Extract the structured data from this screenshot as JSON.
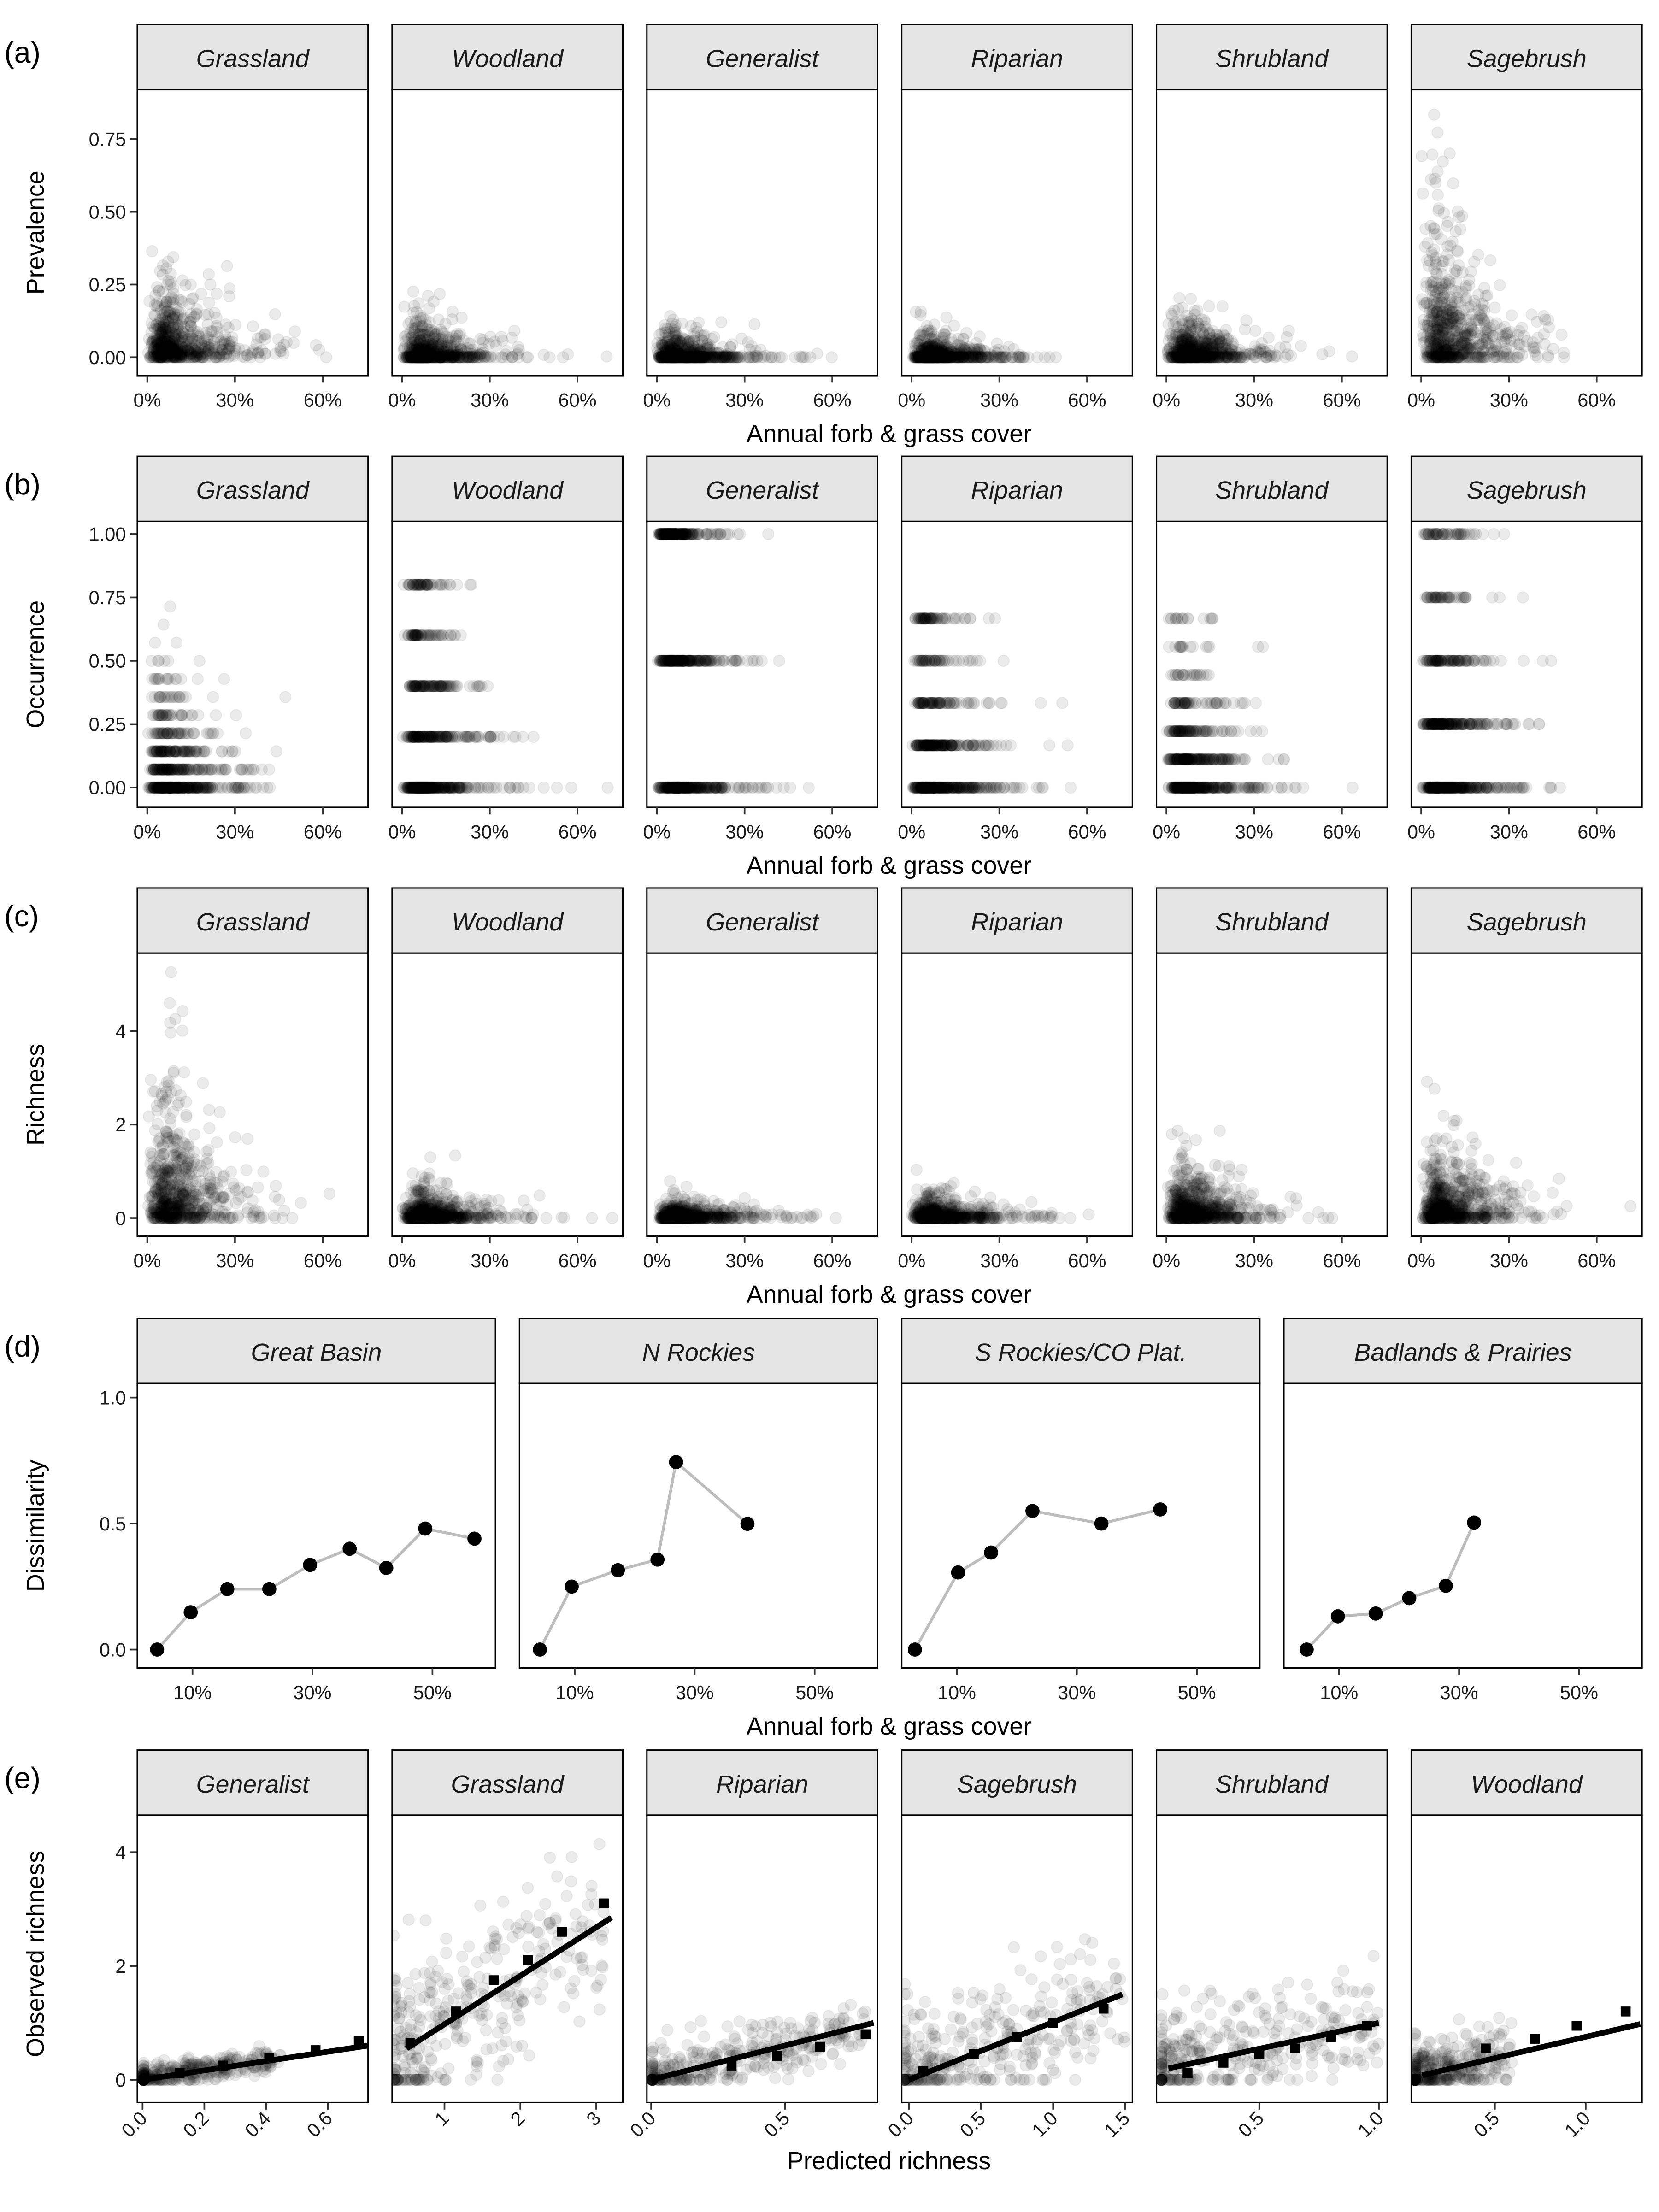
{
  "figure": {
    "panel_tags": [
      "(a)",
      "(b)",
      "(c)",
      "(d)",
      "(e)"
    ],
    "colors": {
      "points": "#000000",
      "strip_fill": "#e5e5e5",
      "connector_line": "#bdbdbd",
      "fit_line": "#000000"
    }
  },
  "chart_data": [
    {
      "tag": "(a)",
      "type": "scatter",
      "ylabel": "Prevalence",
      "xlabel": "Annual forb & grass cover",
      "facets": [
        "Grassland",
        "Woodland",
        "Generalist",
        "Riparian",
        "Shrubland",
        "Sagebrush"
      ],
      "x_ticks": [
        {
          "v": 0,
          "label": "0%"
        },
        {
          "v": 30,
          "label": "30%"
        },
        {
          "v": 60,
          "label": "60%"
        }
      ],
      "y_ticks": [
        {
          "v": 0,
          "label": "0.00"
        },
        {
          "v": 0.25,
          "label": "0.25"
        },
        {
          "v": 0.5,
          "label": "0.50"
        },
        {
          "v": 0.75,
          "label": "0.75"
        }
      ],
      "xlim": [
        -3.4,
        75.5
      ],
      "ylim": [
        -0.063,
        0.92
      ],
      "point_alpha": 0.08,
      "approx_distribution": [
        {
          "facet": "Grassland",
          "y_scale": 0.08,
          "y_max": 0.38,
          "zero_share": 0.1
        },
        {
          "facet": "Woodland",
          "y_scale": 0.045,
          "y_max": 0.36,
          "zero_share": 0.4
        },
        {
          "facet": "Generalist",
          "y_scale": 0.035,
          "y_max": 0.55,
          "zero_share": 0.5
        },
        {
          "facet": "Riparian",
          "y_scale": 0.03,
          "y_max": 0.29,
          "zero_share": 0.5
        },
        {
          "facet": "Shrubland",
          "y_scale": 0.045,
          "y_max": 0.27,
          "zero_share": 0.3
        },
        {
          "facet": "Sagebrush",
          "y_scale": 0.15,
          "y_max": 0.87,
          "zero_share": 0.15
        }
      ]
    },
    {
      "tag": "(b)",
      "type": "scatter",
      "ylabel": "Occurrence",
      "xlabel": "Annual forb & grass cover",
      "facets": [
        "Grassland",
        "Woodland",
        "Generalist",
        "Riparian",
        "Shrubland",
        "Sagebrush"
      ],
      "x_ticks": [
        {
          "v": 0,
          "label": "0%"
        },
        {
          "v": 30,
          "label": "30%"
        },
        {
          "v": 60,
          "label": "60%"
        }
      ],
      "y_ticks": [
        {
          "v": 0,
          "label": "0.00"
        },
        {
          "v": 0.25,
          "label": "0.25"
        },
        {
          "v": 0.5,
          "label": "0.50"
        },
        {
          "v": 0.75,
          "label": "0.75"
        },
        {
          "v": 1,
          "label": "1.00"
        }
      ],
      "xlim": [
        -3.4,
        75.5
      ],
      "ylim": [
        -0.078,
        1.05
      ],
      "point_alpha": 0.08,
      "approx_distribution": [
        {
          "facet": "Grassland",
          "level_step": 0.0714,
          "max_level": 0.714
        },
        {
          "facet": "Woodland",
          "level_step": 0.2,
          "max_level": 0.8
        },
        {
          "facet": "Generalist",
          "level_step": 0.5,
          "max_level": 1.0
        },
        {
          "facet": "Riparian",
          "level_step": 0.1667,
          "max_level": 0.667
        },
        {
          "facet": "Shrubland",
          "level_step": 0.1111,
          "max_level": 0.667
        },
        {
          "facet": "Sagebrush",
          "level_step": 0.25,
          "max_level": 1.0
        }
      ]
    },
    {
      "tag": "(c)",
      "type": "scatter",
      "ylabel": "Richness",
      "xlabel": "Annual forb & grass cover",
      "facets": [
        "Grassland",
        "Woodland",
        "Generalist",
        "Riparian",
        "Shrubland",
        "Sagebrush"
      ],
      "x_ticks": [
        {
          "v": 0,
          "label": "0%"
        },
        {
          "v": 30,
          "label": "30%"
        },
        {
          "v": 60,
          "label": "60%"
        }
      ],
      "y_ticks": [
        {
          "v": 0,
          "label": "0"
        },
        {
          "v": 2,
          "label": "2"
        },
        {
          "v": 4,
          "label": "4"
        }
      ],
      "xlim": [
        -3.4,
        75.5
      ],
      "ylim": [
        -0.39,
        5.67
      ],
      "point_alpha": 0.08,
      "approx_distribution": [
        {
          "facet": "Grassland",
          "y_scale": 0.9,
          "y_max": 5.3,
          "zero_share": 0.15
        },
        {
          "facet": "Woodland",
          "y_scale": 0.22,
          "y_max": 1.8,
          "zero_share": 0.35
        },
        {
          "facet": "Generalist",
          "y_scale": 0.13,
          "y_max": 1.1,
          "zero_share": 0.4
        },
        {
          "facet": "Riparian",
          "y_scale": 0.16,
          "y_max": 1.7,
          "zero_share": 0.4
        },
        {
          "facet": "Shrubland",
          "y_scale": 0.38,
          "y_max": 2.4,
          "zero_share": 0.25
        },
        {
          "facet": "Sagebrush",
          "y_scale": 0.5,
          "y_max": 3.5,
          "zero_share": 0.2
        }
      ]
    },
    {
      "tag": "(d)",
      "type": "line",
      "ylabel": "Dissimilarity",
      "xlabel": "Annual forb & grass cover",
      "facets": [
        "Great Basin",
        "N Rockies",
        "S Rockies/CO Plat.",
        "Badlands & Prairies"
      ],
      "x_ticks": [
        {
          "v": 10,
          "label": "10%"
        },
        {
          "v": 30,
          "label": "30%"
        },
        {
          "v": 50,
          "label": "50%"
        }
      ],
      "y_ticks": [
        {
          "v": 0,
          "label": "0.0"
        },
        {
          "v": 0.5,
          "label": "0.5"
        },
        {
          "v": 1,
          "label": "1.0"
        }
      ],
      "xlim": [
        0.8,
        60.5
      ],
      "ylim": [
        -0.073,
        1.056
      ],
      "series": [
        {
          "facet": "Great Basin",
          "x": [
            4.1,
            9.7,
            15.8,
            22.8,
            29.6,
            36.2,
            42.3,
            48.8,
            57.0
          ],
          "y": [
            0.0,
            0.148,
            0.24,
            0.24,
            0.336,
            0.4,
            0.324,
            0.48,
            0.44
          ]
        },
        {
          "facet": "N Rockies",
          "x": [
            4.2,
            9.5,
            17.2,
            23.8,
            26.9,
            38.8
          ],
          "y": [
            0.0,
            0.25,
            0.315,
            0.357,
            0.744,
            0.499
          ]
        },
        {
          "facet": "S Rockies/CO Plat.",
          "x": [
            3.0,
            10.2,
            15.7,
            22.6,
            34.1,
            43.9
          ],
          "y": [
            0.0,
            0.306,
            0.385,
            0.55,
            0.5,
            0.556
          ]
        },
        {
          "facet": "Badlands & Prairies",
          "x": [
            4.6,
            9.8,
            16.1,
            21.7,
            27.8,
            32.5
          ],
          "y": [
            0.0,
            0.132,
            0.143,
            0.204,
            0.253,
            0.504
          ]
        }
      ]
    },
    {
      "tag": "(e)",
      "type": "scatter",
      "ylabel": "Observed richness",
      "xlabel": "Predicted richness",
      "y_ticks": [
        {
          "v": 0,
          "label": "0"
        },
        {
          "v": 2,
          "label": "2"
        },
        {
          "v": 4,
          "label": "4"
        }
      ],
      "ylim": [
        -0.4,
        4.65
      ],
      "point_alpha": 0.08,
      "facets": [
        {
          "facet": "Generalist",
          "xlim": [
            -0.017,
            0.73
          ],
          "x_ticks": [
            {
              "v": 0,
              "label": "0.0"
            },
            {
              "v": 0.2,
              "label": "0.2"
            },
            {
              "v": 0.4,
              "label": "0.4"
            },
            {
              "v": 0.6,
              "label": "0.6"
            }
          ],
          "fit_line": {
            "x": [
              0.0,
              0.73
            ],
            "y": [
              0.0,
              0.6
            ]
          },
          "binned_means": {
            "x": [
              0.12,
              0.26,
              0.41,
              0.56,
              0.7
            ],
            "y": [
              0.12,
              0.25,
              0.38,
              0.52,
              0.68
            ]
          },
          "approx_distribution": {
            "x_max": 0.45,
            "noise": 0.12
          }
        },
        {
          "facet": "Grassland",
          "xlim": [
            0.31,
            3.35
          ],
          "x_ticks": [
            {
              "v": 1,
              "label": "1"
            },
            {
              "v": 2,
              "label": "2"
            },
            {
              "v": 3,
              "label": "3"
            }
          ],
          "fit_line": {
            "x": [
              0.5,
              3.2
            ],
            "y": [
              0.55,
              2.85
            ]
          },
          "binned_means": {
            "x": [
              0.55,
              1.15,
              1.65,
              2.1,
              2.55,
              3.1
            ],
            "y": [
              0.65,
              1.2,
              1.75,
              2.1,
              2.6,
              3.1
            ]
          },
          "approx_distribution": {
            "x_max": 3.1,
            "noise": 0.8
          }
        },
        {
          "facet": "Riparian",
          "xlim": [
            -0.016,
            0.845
          ],
          "x_ticks": [
            {
              "v": 0,
              "label": "0.0"
            },
            {
              "v": 0.5,
              "label": "0.5"
            }
          ],
          "fit_line": {
            "x": [
              0.0,
              0.83
            ],
            "y": [
              0.0,
              1.0
            ]
          },
          "binned_means": {
            "x": [
              0.3,
              0.47,
              0.63,
              0.8
            ],
            "y": [
              0.25,
              0.42,
              0.58,
              0.8
            ]
          },
          "approx_distribution": {
            "x_max": 0.8,
            "noise": 0.25
          }
        },
        {
          "facet": "Sagebrush",
          "xlim": [
            -0.05,
            1.55
          ],
          "x_ticks": [
            {
              "v": 0,
              "label": "0.0"
            },
            {
              "v": 0.5,
              "label": "0.5"
            },
            {
              "v": 1,
              "label": "1.0"
            },
            {
              "v": 1.5,
              "label": "1.5"
            }
          ],
          "fit_line": {
            "x": [
              0.0,
              1.48
            ],
            "y": [
              0.0,
              1.5
            ]
          },
          "binned_means": {
            "x": [
              0.1,
              0.45,
              0.75,
              1.0,
              1.35
            ],
            "y": [
              0.15,
              0.45,
              0.75,
              1.0,
              1.25
            ]
          },
          "approx_distribution": {
            "x_max": 1.5,
            "noise": 0.55
          }
        },
        {
          "facet": "Shrubland",
          "xlim": [
            0.07,
            1.035
          ],
          "x_ticks": [
            {
              "v": 0.5,
              "label": "0.5"
            },
            {
              "v": 1,
              "label": "1.0"
            }
          ],
          "fit_line": {
            "x": [
              0.12,
              1.0
            ],
            "y": [
              0.2,
              1.0
            ]
          },
          "binned_means": {
            "x": [
              0.2,
              0.35,
              0.5,
              0.65,
              0.8,
              0.95
            ],
            "y": [
              0.12,
              0.3,
              0.45,
              0.55,
              0.75,
              0.95
            ]
          },
          "approx_distribution": {
            "x_max": 1.0,
            "noise": 0.45
          }
        },
        {
          "facet": "Woodland",
          "xlim": [
            0.04,
            1.31
          ],
          "x_ticks": [
            {
              "v": 0.5,
              "label": "0.5"
            },
            {
              "v": 1,
              "label": "1.0"
            }
          ],
          "fit_line": {
            "x": [
              0.1,
              1.3
            ],
            "y": [
              0.08,
              0.98
            ]
          },
          "binned_means": {
            "x": [
              0.45,
              0.72,
              0.95,
              1.22
            ],
            "y": [
              0.55,
              0.72,
              0.95,
              1.2
            ]
          },
          "approx_distribution": {
            "x_max": 0.6,
            "noise": 0.3
          }
        }
      ]
    }
  ]
}
